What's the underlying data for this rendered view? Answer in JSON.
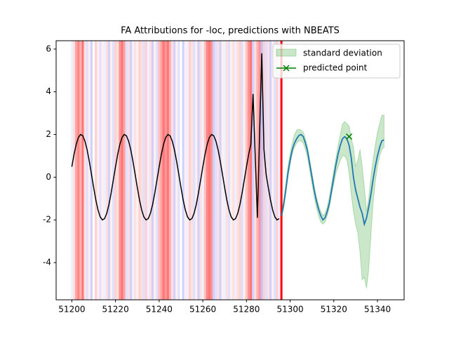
{
  "chart_data": {
    "type": "line",
    "title": "FA Attributions for -loc, predictions with NBEATS",
    "xlim": [
      51192.8,
      51352.2
    ],
    "ylim": [
      -5.74,
      6.39
    ],
    "xticks": [
      51200,
      51220,
      51240,
      51260,
      51280,
      51300,
      51320,
      51340
    ],
    "yticks": [
      -4,
      -2,
      0,
      2,
      4,
      6
    ],
    "positive_color": "#ff0000",
    "negative_color": "#0000ff",
    "history": {
      "color": "#000000",
      "x": [
        51200,
        51201,
        51202,
        51203,
        51204,
        51205,
        51206,
        51207,
        51208,
        51209,
        51210,
        51211,
        51212,
        51213,
        51214,
        51215,
        51216,
        51217,
        51218,
        51219,
        51220,
        51221,
        51222,
        51223,
        51224,
        51225,
        51226,
        51227,
        51228,
        51229,
        51230,
        51231,
        51232,
        51233,
        51234,
        51235,
        51236,
        51237,
        51238,
        51239,
        51240,
        51241,
        51242,
        51243,
        51244,
        51245,
        51246,
        51247,
        51248,
        51249,
        51250,
        51251,
        51252,
        51253,
        51254,
        51255,
        51256,
        51257,
        51258,
        51259,
        51260,
        51261,
        51262,
        51263,
        51264,
        51265,
        51266,
        51267,
        51268,
        51269,
        51270,
        51271,
        51272,
        51273,
        51274,
        51275,
        51276,
        51277,
        51278,
        51279,
        51280,
        51281,
        51282,
        51283,
        51284,
        51285,
        51286,
        51287,
        51288,
        51289,
        51290,
        51291,
        51292,
        51293,
        51294,
        51295
      ],
      "values": [
        0.49,
        1.07,
        1.54,
        1.86,
        2.0,
        1.94,
        1.69,
        1.28,
        0.74,
        0.13,
        -0.49,
        -1.07,
        -1.54,
        -1.86,
        -2.0,
        -1.94,
        -1.69,
        -1.28,
        -0.74,
        -0.13,
        0.49,
        1.07,
        1.54,
        1.86,
        2.0,
        1.94,
        1.69,
        1.28,
        0.74,
        0.13,
        -0.49,
        -1.07,
        -1.54,
        -1.86,
        -2.0,
        -1.94,
        -1.69,
        -1.28,
        -0.74,
        -0.13,
        0.49,
        1.07,
        1.54,
        1.86,
        2.0,
        1.94,
        1.69,
        1.28,
        0.74,
        0.13,
        -0.49,
        -1.07,
        -1.54,
        -1.86,
        -2.0,
        -1.94,
        -1.69,
        -1.28,
        -0.74,
        -0.13,
        0.49,
        1.07,
        1.54,
        1.86,
        2.0,
        1.94,
        1.69,
        1.28,
        0.74,
        0.13,
        -0.49,
        -1.07,
        -1.54,
        -1.86,
        -2.0,
        -1.94,
        -1.69,
        -1.28,
        -0.74,
        -0.13,
        0.49,
        1.07,
        1.54,
        3.9,
        1.0,
        -1.9,
        2.0,
        5.8,
        1.3,
        0.13,
        -0.49,
        -1.07,
        -1.54,
        -1.86,
        -2.0,
        -1.94
      ],
      "attributions": [
        -0.1,
        0.2,
        0.6,
        0.8,
        0.5,
        0.9,
        0.2,
        -0.2,
        0.1,
        -0.3,
        0.0,
        0.3,
        0.1,
        -0.2,
        0.1,
        -0.1,
        0.2,
        -0.3,
        0.1,
        -0.2,
        0.3,
        0.2,
        0.7,
        0.9,
        0.6,
        -0.2,
        0.2,
        -0.3,
        -0.1,
        0.2,
        0.1,
        0.3,
        0.2,
        -0.2,
        0.3,
        -0.1,
        0.2,
        -0.3,
        0.1,
        -0.2,
        0.4,
        0.6,
        0.9,
        0.7,
        0.9,
        0.5,
        0.2,
        -0.3,
        0.1,
        -0.2,
        0.0,
        -0.3,
        0.1,
        -0.1,
        0.3,
        0.2,
        -0.2,
        0.1,
        -0.3,
        0.2,
        -0.1,
        0.4,
        0.8,
        0.9,
        0.7,
        -0.3,
        -0.2,
        0.2,
        -0.3,
        0.1,
        -0.1,
        0.2,
        -0.2,
        0.1,
        0.2,
        -0.1,
        0.2,
        0.3,
        -0.2,
        0.1,
        0.4,
        0.7,
        0.9,
        -0.3,
        0.2,
        0.5,
        0.7,
        -0.4,
        0.3,
        -0.2,
        0.2,
        -0.3,
        0.1,
        -0.2,
        0.3,
        -0.1
      ]
    },
    "vline": {
      "x": 51296,
      "color": "#ff0000"
    },
    "forecast": {
      "color": "#1f77b4",
      "x": [
        51296,
        51297,
        51298,
        51299,
        51300,
        51301,
        51302,
        51303,
        51304,
        51305,
        51306,
        51307,
        51308,
        51309,
        51310,
        51311,
        51312,
        51313,
        51314,
        51315,
        51316,
        51317,
        51318,
        51319,
        51320,
        51321,
        51322,
        51323,
        51324,
        51325,
        51326,
        51327,
        51328,
        51329,
        51330,
        51331,
        51332,
        51333,
        51334,
        51335,
        51336,
        51337,
        51338,
        51339,
        51340,
        51341,
        51342,
        51343
      ],
      "values": [
        -1.8,
        -1.3,
        -0.6,
        0.2,
        0.8,
        1.3,
        1.6,
        1.8,
        1.95,
        2.0,
        1.9,
        1.6,
        1.2,
        0.6,
        0.0,
        -0.6,
        -1.1,
        -1.5,
        -1.8,
        -2.0,
        -1.9,
        -1.6,
        -1.2,
        -0.6,
        0.0,
        0.6,
        1.1,
        1.5,
        1.8,
        1.9,
        1.8,
        1.5,
        0.9,
        0.0,
        -0.6,
        -1.0,
        -1.4,
        -1.7,
        -2.2,
        -1.9,
        -1.4,
        -0.8,
        -0.1,
        0.5,
        1.0,
        1.4,
        1.7,
        1.75
      ]
    },
    "series": [
      {
        "name": "standard deviation",
        "color": "#2ca02c",
        "lower": [
          -2.0,
          -1.5,
          -0.8,
          0.0,
          0.6,
          1.1,
          1.4,
          1.6,
          1.7,
          1.7,
          1.6,
          1.3,
          0.9,
          0.3,
          -0.3,
          -0.9,
          -1.4,
          -1.8,
          -2.1,
          -2.2,
          -2.1,
          -1.8,
          -1.4,
          -0.8,
          -0.3,
          0.2,
          0.5,
          0.8,
          1.0,
          1.0,
          0.8,
          0.2,
          -0.8,
          -1.6,
          -2.2,
          -2.6,
          -3.5,
          -4.8,
          -4.7,
          -5.2,
          -4.3,
          -2.7,
          -1.2,
          -0.2,
          0.5,
          1.0,
          1.3,
          1.4
        ],
        "upper": [
          -1.6,
          -1.1,
          -0.3,
          0.5,
          1.1,
          1.6,
          2.0,
          2.2,
          2.25,
          2.2,
          2.1,
          1.8,
          1.4,
          0.8,
          0.2,
          -0.4,
          -0.9,
          -1.3,
          -1.6,
          -1.8,
          -1.7,
          -1.4,
          -0.9,
          -0.3,
          0.3,
          0.9,
          1.5,
          2.0,
          2.5,
          2.6,
          2.5,
          2.4,
          1.8,
          1.4,
          0.5,
          0.8,
          1.3,
          0.5,
          -0.5,
          -1.6,
          -1.0,
          0.0,
          0.8,
          1.5,
          2.1,
          2.5,
          2.9,
          2.9
        ]
      },
      {
        "name": "predicted point",
        "color": "#008000",
        "x": 51327,
        "y": 1.9
      }
    ]
  }
}
